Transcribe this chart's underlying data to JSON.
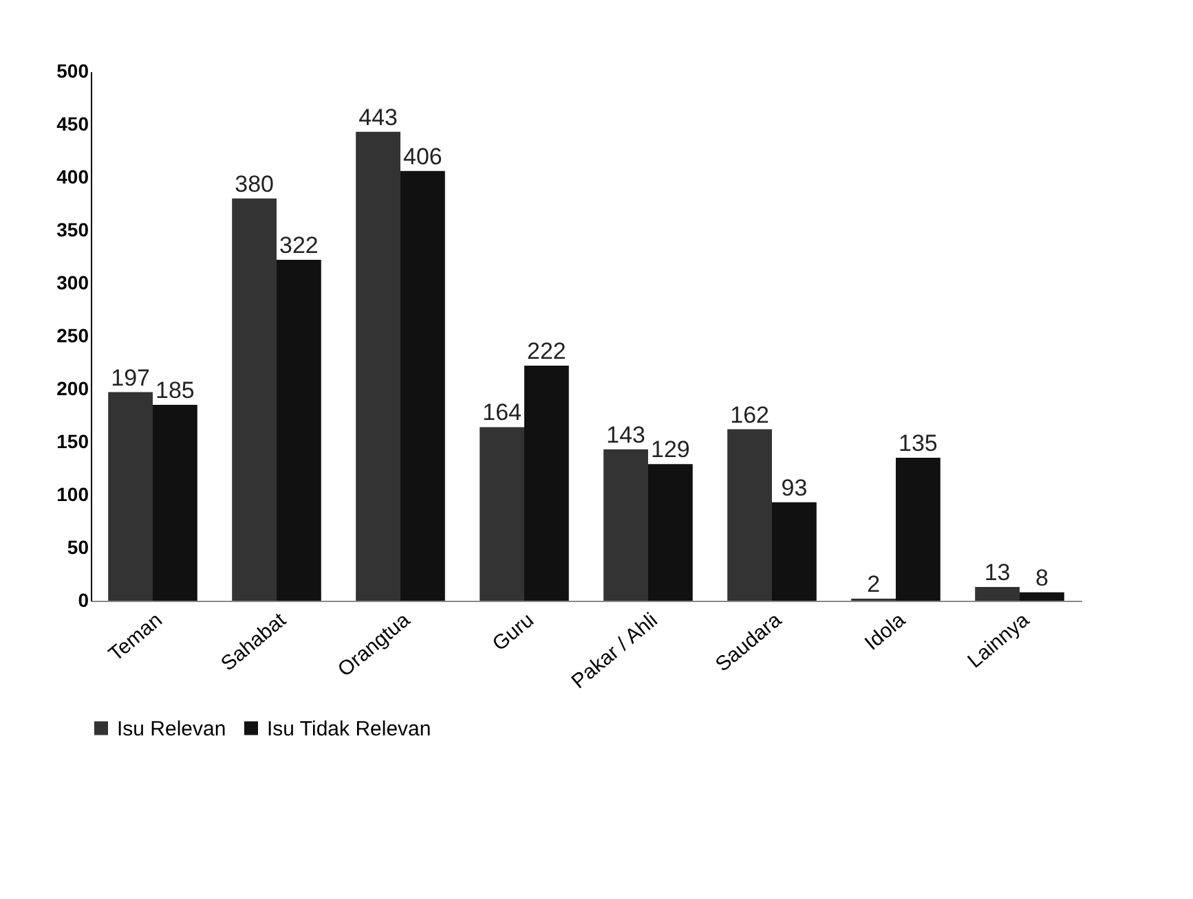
{
  "chart_data": {
    "type": "bar",
    "categories": [
      "Teman",
      "Sahabat",
      "Orangtua",
      "Guru",
      "Pakar / Ahli",
      "Saudara",
      "Idola",
      "Lainnya"
    ],
    "series": [
      {
        "name": "Isu Relevan",
        "color": "#333333",
        "values": [
          197,
          380,
          443,
          164,
          143,
          162,
          2,
          13
        ]
      },
      {
        "name": "Isu Tidak Relevan",
        "color": "#111111",
        "values": [
          185,
          322,
          406,
          222,
          129,
          93,
          135,
          8
        ]
      }
    ],
    "ylim": [
      0,
      500
    ],
    "yticks": [
      0,
      50,
      100,
      150,
      200,
      250,
      300,
      350,
      400,
      450,
      500
    ],
    "grid": false,
    "legend": "bottom",
    "data_labels": true
  }
}
